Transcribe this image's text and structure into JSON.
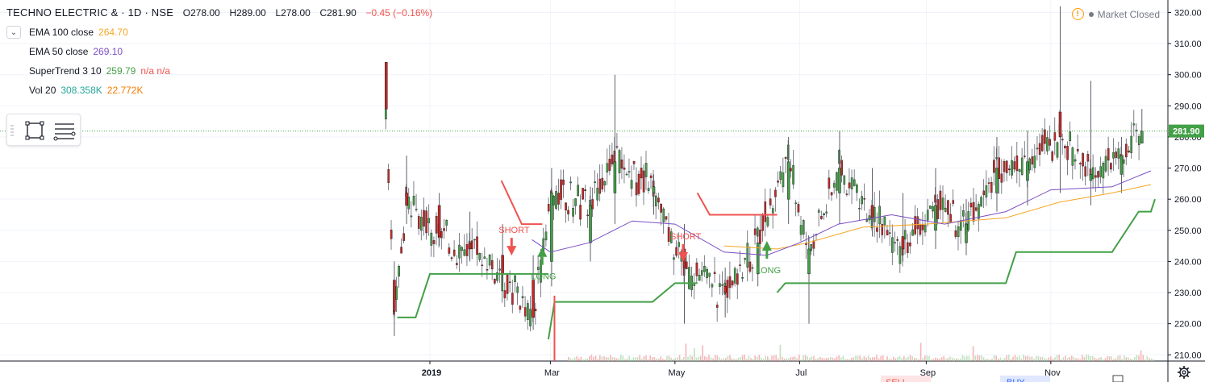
{
  "header": {
    "title": "TECHNO ELECTRIC & · 1D · NSE",
    "open": "O278.00",
    "high": "H289.00",
    "low": "L278.00",
    "close": "C281.90",
    "change": "−0.45 (−0.16%)"
  },
  "legend": [
    {
      "name": "EMA 100 close",
      "value": "264.70",
      "extra": "",
      "color": "#f5a623"
    },
    {
      "name": "EMA 50 close",
      "value": "269.10",
      "extra": "",
      "color": "#7b4fc4"
    },
    {
      "name": "SuperTrend 3 10",
      "value": "259.79",
      "extra": "n/a n/a",
      "color": "#43a047"
    },
    {
      "name": "Vol 20",
      "value": "308.358K",
      "extra": "22.772K",
      "color": "#26a69a"
    }
  ],
  "status": {
    "market": "Market Closed"
  },
  "icons": {
    "collapse": "chevron-down-icon",
    "warning": "warning-icon",
    "settings": "gear-icon",
    "rect": "rectangle-tool-icon",
    "fib": "lines-tool-icon"
  },
  "colors": {
    "up": "#43a047",
    "down": "#c62828",
    "ema100": "#f5a623",
    "ema50": "#7b4fc4",
    "supertrend_up": "#43a047",
    "supertrend_down": "#ef5350",
    "price_label": "#43a047"
  },
  "chart_data": {
    "type": "candlestick",
    "title": "TECHNO ELECTRIC & · 1D · NSE",
    "ylim": [
      208,
      324
    ],
    "y_ticks": [
      210,
      220,
      230,
      240,
      250,
      260,
      270,
      280,
      290,
      300,
      310,
      320
    ],
    "y_tick_labels": [
      "210.00",
      "220.00",
      "230.00",
      "240.00",
      "250.00",
      "260.00",
      "270.00",
      "280.00",
      "290.00",
      "300.00",
      "310.00",
      "320.00"
    ],
    "x_labels": [
      "2019",
      "Mar",
      "May",
      "Jul",
      "Sep",
      "Nov"
    ],
    "last_price": 281.9,
    "last_price_label": "281.90",
    "signals": [
      {
        "label": "SHORT",
        "date": "2019-02-10",
        "price": 245
      },
      {
        "label": "LONG",
        "date": "2019-02-25",
        "price": 242
      },
      {
        "label": "SHORT",
        "date": "2019-05-05",
        "price": 243
      },
      {
        "label": "LONG",
        "date": "2019-06-15",
        "price": 244
      }
    ],
    "partial_labels": [
      "SELL",
      "BUY"
    ],
    "candles_approx": [
      {
        "date": "2018-12-10",
        "open": 304,
        "high": 304,
        "low": 289,
        "close": 289
      },
      {
        "date": "2018-12-14",
        "open": 234,
        "high": 240,
        "low": 216,
        "close": 224
      },
      {
        "date": "2018-12-20",
        "open": 262,
        "high": 274,
        "low": 252,
        "close": 258
      },
      {
        "date": "2019-01-05",
        "open": 258,
        "high": 262,
        "low": 245,
        "close": 248
      },
      {
        "date": "2019-01-20",
        "open": 246,
        "high": 256,
        "low": 240,
        "close": 244
      },
      {
        "date": "2019-02-05",
        "open": 242,
        "high": 252,
        "low": 232,
        "close": 236
      },
      {
        "date": "2019-02-20",
        "open": 234,
        "high": 242,
        "low": 218,
        "close": 222
      },
      {
        "date": "2019-03-01",
        "open": 240,
        "high": 270,
        "low": 232,
        "close": 262
      },
      {
        "date": "2019-03-20",
        "open": 246,
        "high": 264,
        "low": 240,
        "close": 258
      },
      {
        "date": "2019-04-01",
        "open": 262,
        "high": 300,
        "low": 252,
        "close": 272
      },
      {
        "date": "2019-04-20",
        "open": 262,
        "high": 268,
        "low": 255,
        "close": 264
      },
      {
        "date": "2019-05-05",
        "open": 244,
        "high": 252,
        "low": 220,
        "close": 238
      },
      {
        "date": "2019-05-25",
        "open": 232,
        "high": 238,
        "low": 222,
        "close": 230
      },
      {
        "date": "2019-06-10",
        "open": 236,
        "high": 250,
        "low": 232,
        "close": 246
      },
      {
        "date": "2019-06-25",
        "open": 260,
        "high": 280,
        "low": 252,
        "close": 272
      },
      {
        "date": "2019-07-05",
        "open": 236,
        "high": 248,
        "low": 220,
        "close": 244
      },
      {
        "date": "2019-07-20",
        "open": 262,
        "high": 282,
        "low": 252,
        "close": 270
      },
      {
        "date": "2019-08-05",
        "open": 258,
        "high": 270,
        "low": 248,
        "close": 254
      },
      {
        "date": "2019-08-20",
        "open": 248,
        "high": 262,
        "low": 240,
        "close": 244
      },
      {
        "date": "2019-09-05",
        "open": 250,
        "high": 270,
        "low": 244,
        "close": 258
      },
      {
        "date": "2019-09-20",
        "open": 246,
        "high": 260,
        "low": 242,
        "close": 252
      },
      {
        "date": "2019-10-05",
        "open": 262,
        "high": 280,
        "low": 256,
        "close": 270
      },
      {
        "date": "2019-10-20",
        "open": 266,
        "high": 282,
        "low": 258,
        "close": 272
      },
      {
        "date": "2019-11-05",
        "open": 288,
        "high": 322,
        "low": 262,
        "close": 280
      },
      {
        "date": "2019-11-20",
        "open": 266,
        "high": 298,
        "low": 258,
        "close": 268
      },
      {
        "date": "2019-12-05",
        "open": 268,
        "high": 280,
        "low": 262,
        "close": 274
      },
      {
        "date": "2019-12-15",
        "open": 278,
        "high": 289,
        "low": 278,
        "close": 281.9
      }
    ]
  }
}
